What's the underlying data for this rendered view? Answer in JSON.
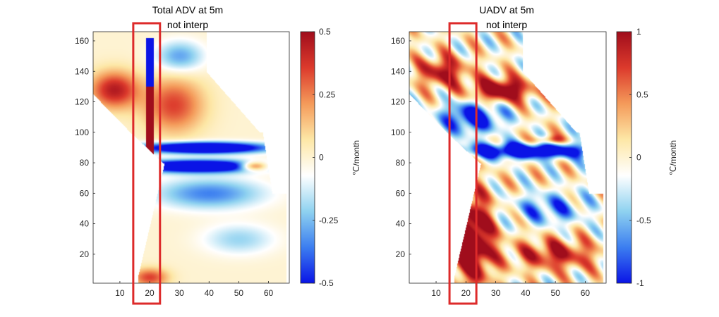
{
  "figure": {
    "background": "#ffffff",
    "highlight_color": "#dd2a2a"
  },
  "chart_data": [
    {
      "type": "heatmap",
      "title": "Total ADV at 5m",
      "subtitle": "not interp",
      "xlim": [
        1,
        67
      ],
      "ylim": [
        1,
        166
      ],
      "xticks": [
        10,
        20,
        30,
        40,
        50,
        60
      ],
      "yticks": [
        20,
        40,
        60,
        80,
        100,
        120,
        140,
        160
      ],
      "colorbar": {
        "label": "℃/month",
        "clim": [
          -0.5,
          0.5
        ],
        "ticks": [
          0.5,
          0.25,
          0,
          -0.25,
          -0.5
        ],
        "tick_labels": [
          "0.5",
          "0.25",
          "0",
          "-0.25",
          "-0.5"
        ],
        "colormap": [
          "#0a14e6",
          "#3c7ef0",
          "#8fd2f0",
          "#ffffff",
          "#fde7a6",
          "#f49a5a",
          "#dc3a2c",
          "#a00d1c"
        ]
      },
      "grid": false,
      "highlight_box_x": [
        14.5,
        23.5
      ]
    },
    {
      "type": "heatmap",
      "title": "UADV at 5m",
      "subtitle": "not interp",
      "xlim": [
        1,
        67
      ],
      "ylim": [
        1,
        166
      ],
      "xticks": [
        10,
        20,
        30,
        40,
        50,
        60
      ],
      "yticks": [
        20,
        40,
        60,
        80,
        100,
        120,
        140,
        160
      ],
      "colorbar": {
        "label": "℃/month",
        "clim": [
          -1,
          1
        ],
        "ticks": [
          1,
          0.5,
          0,
          -0.5,
          -1
        ],
        "tick_labels": [
          "1",
          "0.5",
          "0",
          "-0.5",
          "-1"
        ],
        "colormap": [
          "#0a14e6",
          "#3c7ef0",
          "#8fd2f0",
          "#ffffff",
          "#fde7a6",
          "#f49a5a",
          "#dc3a2c",
          "#a00d1c"
        ]
      },
      "grid": false,
      "highlight_box_x": [
        14.5,
        23.5
      ]
    }
  ]
}
